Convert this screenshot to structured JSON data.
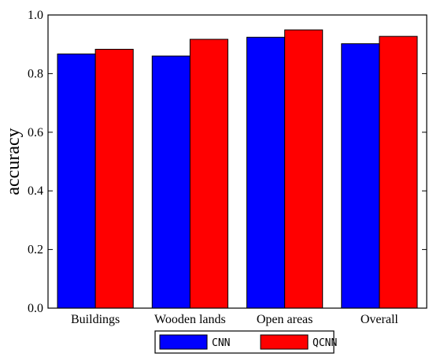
{
  "chart_data": {
    "type": "bar",
    "categories": [
      "Buildings",
      "Wooden lands",
      "Open areas",
      "Overall"
    ],
    "series": [
      {
        "name": "CNN",
        "values": [
          0.867,
          0.86,
          0.924,
          0.902
        ],
        "color": "#0000ff"
      },
      {
        "name": "QCNN",
        "values": [
          0.883,
          0.917,
          0.949,
          0.927
        ],
        "color": "#ff0000"
      }
    ],
    "ylabel": "accuracy",
    "xlabel": "",
    "title": "",
    "ylim": [
      0.0,
      1.0
    ],
    "yticks": [
      "0.0",
      "0.2",
      "0.4",
      "0.6",
      "0.8",
      "1.0"
    ],
    "grid": false,
    "legend_position": "bottom-center"
  }
}
